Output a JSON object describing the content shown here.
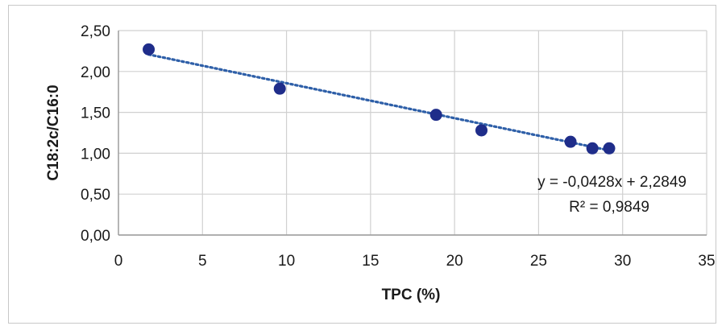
{
  "chart_data": {
    "type": "scatter",
    "xlabel": "TPC (%)",
    "ylabel": "C18:2c/C16:0",
    "xlim": [
      0,
      35
    ],
    "ylim": [
      0,
      2.5
    ],
    "x_ticks": [
      0,
      5,
      10,
      15,
      20,
      25,
      30,
      35
    ],
    "x_tick_labels": [
      "0",
      "5",
      "10",
      "15",
      "20",
      "25",
      "30",
      "35"
    ],
    "y_ticks": [
      0,
      0.5,
      1.0,
      1.5,
      2.0,
      2.5
    ],
    "y_tick_labels": [
      "0,00",
      "0,50",
      "1,00",
      "1,50",
      "2,00",
      "2,50"
    ],
    "grid": true,
    "series": [
      {
        "x": [
          1.8,
          9.6,
          18.9,
          21.6,
          26.9,
          28.2,
          29.2
        ],
        "y": [
          2.27,
          1.79,
          1.47,
          1.28,
          1.14,
          1.06,
          1.06
        ],
        "color": "#1f2d8a"
      }
    ],
    "trendline": {
      "slope": -0.0428,
      "intercept": 2.2849,
      "x_range": [
        1.8,
        29.2
      ],
      "color": "#2e5fa8",
      "style": "dotted"
    },
    "annotations": [
      "y = -0,0428x + 2,2849",
      "R² = 0,9849"
    ]
  }
}
